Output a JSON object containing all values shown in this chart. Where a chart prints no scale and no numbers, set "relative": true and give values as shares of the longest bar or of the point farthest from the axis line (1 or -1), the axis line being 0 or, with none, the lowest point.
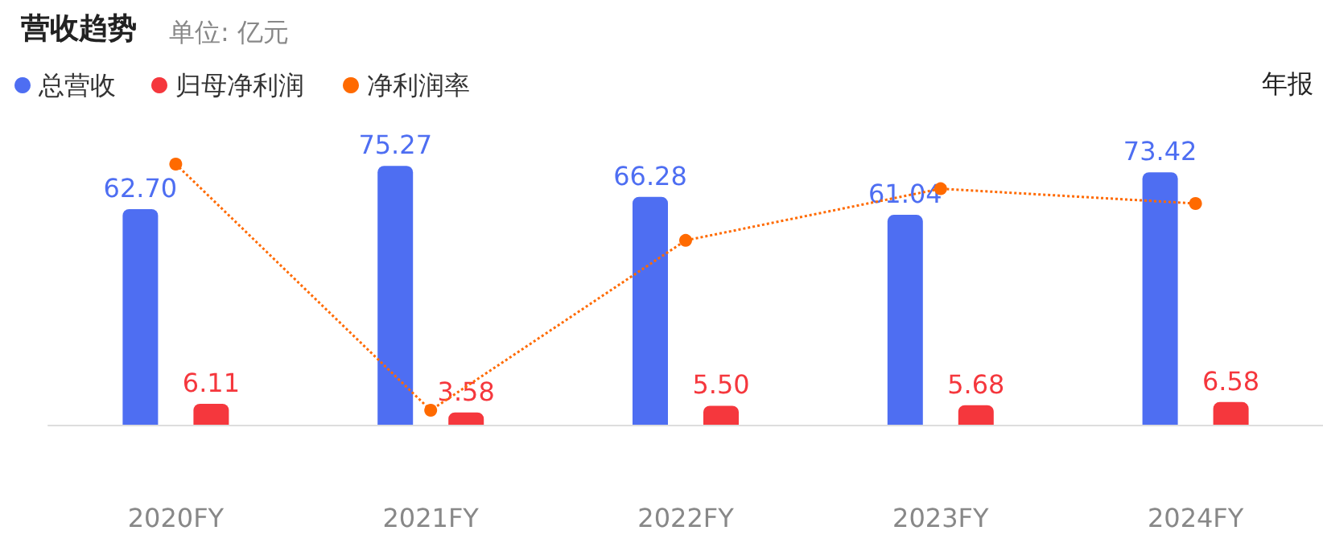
{
  "chart_data": [
    {
      "type": "bar",
      "title": "营收趋势",
      "subtitle": "单位: 亿元",
      "annotations": [
        "年报"
      ],
      "categories": [
        "2020FY",
        "2021FY",
        "2022FY",
        "2023FY",
        "2024FY"
      ],
      "series": [
        {
          "name": "总营收",
          "color": "#4e6ef2",
          "values": [
            62.7,
            75.27,
            66.28,
            61.04,
            73.42
          ],
          "value_labels": [
            "62.70",
            "75.27",
            "66.28",
            "61.04",
            "73.42"
          ]
        },
        {
          "name": "归母净利润",
          "color": "#f5373d",
          "values": [
            6.11,
            3.58,
            5.5,
            5.68,
            6.58
          ],
          "value_labels": [
            "6.11",
            "3.58",
            "5.50",
            "5.68",
            "6.58"
          ]
        }
      ],
      "legend": "top left",
      "grid": false
    },
    {
      "type": "line",
      "relative": true,
      "categories": [
        null,
        null,
        null,
        null,
        null
      ],
      "series": [
        {
          "name": "净利润率",
          "color": "#ff6a00",
          "values": [
            1,
            0,
            0.69,
            0.9,
            0.84
          ]
        }
      ],
      "marker": "circle",
      "line_style": "dotted",
      "legend": "top left",
      "grid": false
    }
  ]
}
